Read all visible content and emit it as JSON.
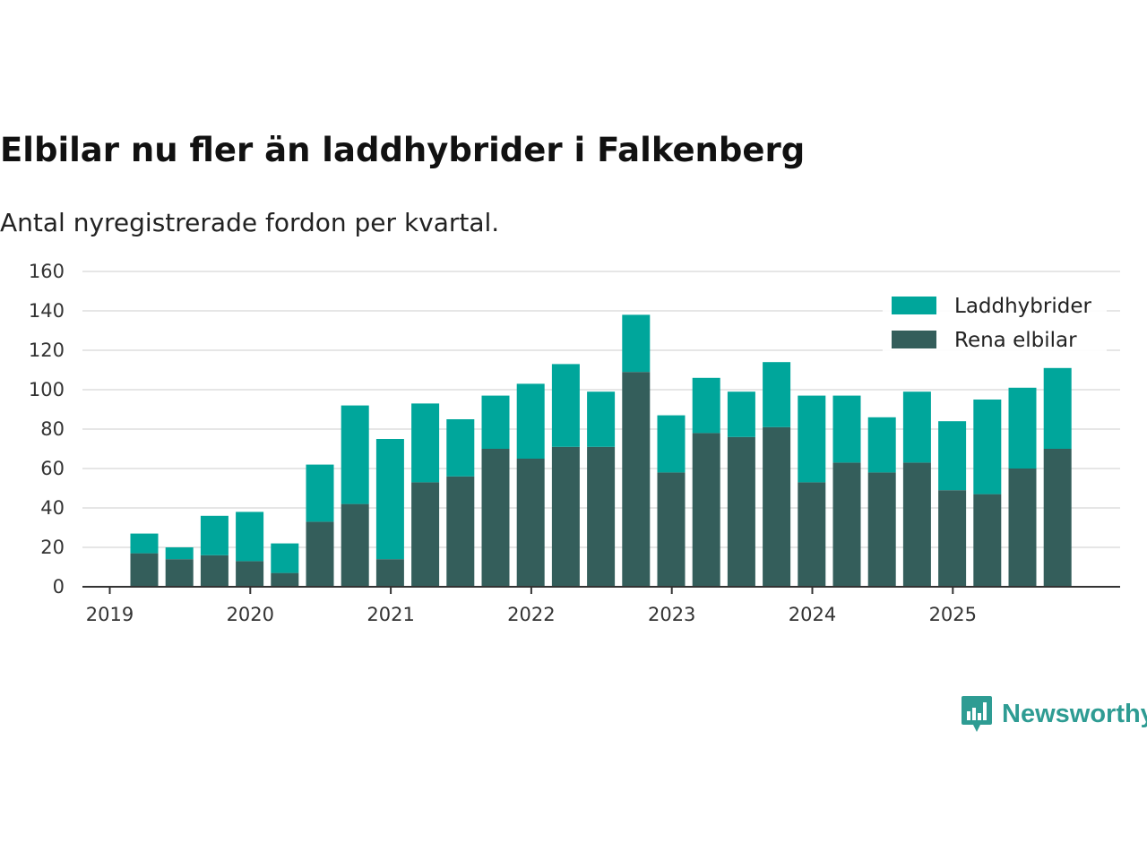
{
  "title": "Elbilar nu fler än laddhybrider i Falkenberg",
  "subtitle": "Antal nyregistrerade fordon per kvartal.",
  "brand": {
    "name": "Newsworthy",
    "icon": "bar-chart-speech-icon",
    "color": "#2e9c93"
  },
  "colors": {
    "laddhybrider": "#00a69b",
    "rena_elbilar": "#345e5b",
    "grid": "#dddddd",
    "axis": "#333333"
  },
  "chart_data": {
    "type": "bar",
    "stacked": true,
    "title": "Elbilar nu fler än laddhybrider i Falkenberg",
    "subtitle": "Antal nyregistrerade fordon per kvartal.",
    "xlabel": "",
    "ylabel": "",
    "ylim": [
      0,
      160
    ],
    "yticks": [
      0,
      20,
      40,
      60,
      80,
      100,
      120,
      140,
      160
    ],
    "xticks": [
      "2019",
      "2020",
      "2021",
      "2022",
      "2023",
      "2024",
      "2025"
    ],
    "grid": true,
    "legend_position": "top-right",
    "categories": [
      "2019 Q2",
      "2019 Q3",
      "2019 Q4",
      "2020 Q1",
      "2020 Q2",
      "2020 Q3",
      "2020 Q4",
      "2021 Q1",
      "2021 Q2",
      "2021 Q3",
      "2021 Q4",
      "2022 Q1",
      "2022 Q2",
      "2022 Q3",
      "2022 Q4",
      "2023 Q1",
      "2023 Q2",
      "2023 Q3",
      "2023 Q4",
      "2024 Q1",
      "2024 Q2",
      "2024 Q3",
      "2024 Q4",
      "2025 Q1",
      "2025 Q2",
      "2025 Q3",
      "2025 Q4"
    ],
    "series": [
      {
        "name": "Rena elbilar",
        "key": "rena_elbilar",
        "values": [
          17,
          14,
          16,
          13,
          7,
          33,
          42,
          14,
          53,
          56,
          70,
          65,
          71,
          71,
          109,
          58,
          78,
          76,
          81,
          53,
          63,
          58,
          63,
          49,
          47,
          60,
          70
        ]
      },
      {
        "name": "Laddhybrider",
        "key": "laddhybrider",
        "values": [
          10,
          6,
          20,
          25,
          15,
          29,
          50,
          61,
          40,
          29,
          27,
          38,
          42,
          28,
          29,
          29,
          28,
          23,
          33,
          44,
          34,
          28,
          36,
          35,
          48,
          41,
          41
        ]
      }
    ],
    "legend": [
      "Laddhybrider",
      "Rena elbilar"
    ]
  }
}
